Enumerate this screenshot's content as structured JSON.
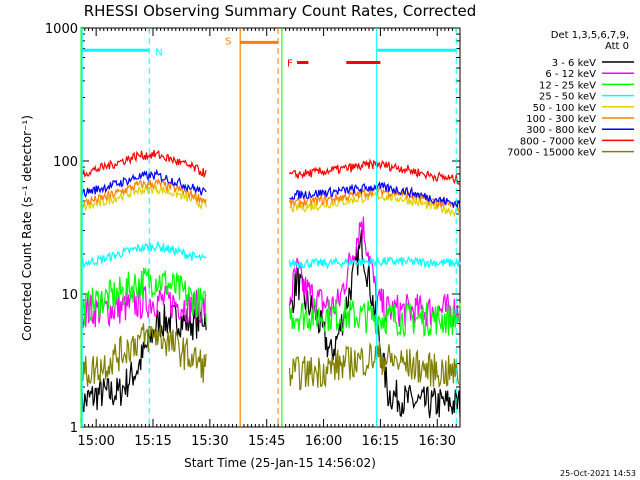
{
  "chart_data": {
    "type": "line",
    "title": "RHESSI Observing Summary Count Rates, Corrected",
    "xlabel": "Start Time (25-Jan-15 14:56:02)",
    "ylabel": "Corrected Count Rate (s⁻¹ detector⁻¹)",
    "y_scale": "log",
    "ylim": [
      1,
      1000
    ],
    "xlim_minutes": [
      0,
      100
    ],
    "x_ticks": [
      {
        "label": "15:00",
        "minute": 4
      },
      {
        "label": "15:15",
        "minute": 19
      },
      {
        "label": "15:30",
        "minute": 34
      },
      {
        "label": "15:45",
        "minute": 49
      },
      {
        "label": "16:00",
        "minute": 64
      },
      {
        "label": "16:15",
        "minute": 79
      },
      {
        "label": "16:30",
        "minute": 94
      }
    ],
    "y_ticks": [
      {
        "label": "1",
        "value": 1
      },
      {
        "label": "10",
        "value": 10
      },
      {
        "label": "100",
        "value": 100
      },
      {
        "label": "1000",
        "value": 1000
      }
    ],
    "legend_header": [
      "Det 1,3,5,6,7,9,",
      "Att 0"
    ],
    "legend_position": "top-right",
    "series": [
      {
        "name": "3 - 6 keV",
        "color": "#000000",
        "segments": [
          {
            "x": [
              0,
              5,
              10,
              15,
              20,
              25,
              30,
              33
            ],
            "y": [
              1.5,
              1.8,
              1.8,
              2.8,
              6,
              6.5,
              6,
              7
            ]
          },
          {
            "x": [
              55,
              57,
              59,
              62,
              66,
              68,
              72,
              74,
              76,
              78,
              81,
              85,
              90,
              100
            ],
            "y": [
              7,
              13,
              9,
              7,
              3.5,
              5,
              14,
              24,
              13,
              6,
              1.8,
              1.6,
              1.5,
              1.5
            ]
          }
        ]
      },
      {
        "name": "6 - 12 keV",
        "color": "#ff00ff",
        "segments": [
          {
            "x": [
              0,
              5,
              10,
              15,
              20,
              25,
              30,
              33
            ],
            "y": [
              7.5,
              7.5,
              7.8,
              8.5,
              9,
              8.5,
              8,
              8
            ]
          },
          {
            "x": [
              55,
              57,
              59,
              62,
              66,
              68,
              72,
              74,
              76,
              78,
              81,
              85,
              90,
              100
            ],
            "y": [
              9,
              15,
              11,
              9,
              8,
              8.5,
              22,
              36,
              20,
              9,
              7.5,
              7.5,
              7.5,
              7.5
            ]
          }
        ]
      },
      {
        "name": "12 - 25 keV",
        "color": "#00ff00",
        "segments": [
          {
            "x": [
              0,
              5,
              10,
              15,
              20,
              25,
              30,
              33
            ],
            "y": [
              7.5,
              9,
              10,
              12,
              13,
              11,
              9,
              8
            ]
          },
          {
            "x": [
              55,
              65,
              75,
              85,
              100
            ],
            "y": [
              7,
              7,
              6.8,
              6.5,
              6.5
            ]
          }
        ]
      },
      {
        "name": "25 - 50 keV",
        "color": "#00ffff",
        "segments": [
          {
            "x": [
              0,
              5,
              10,
              15,
              20,
              25,
              30,
              33
            ],
            "y": [
              17,
              18,
              20,
              22,
              23,
              21,
              19,
              18
            ]
          },
          {
            "x": [
              55,
              65,
              75,
              85,
              100
            ],
            "y": [
              17,
              17,
              17.5,
              17.5,
              17
            ]
          }
        ]
      },
      {
        "name": "50 - 100 keV",
        "color": "#e0d000",
        "segments": [
          {
            "x": [
              0,
              5,
              10,
              15,
              20,
              25,
              30,
              33
            ],
            "y": [
              44,
              48,
              54,
              60,
              62,
              57,
              50,
              46
            ]
          },
          {
            "x": [
              55,
              62,
              70,
              78,
              85,
              92,
              100
            ],
            "y": [
              44,
              46,
              50,
              55,
              52,
              46,
              41
            ]
          }
        ]
      },
      {
        "name": "100 - 300 keV",
        "color": "#ff8000",
        "segments": [
          {
            "x": [
              0,
              5,
              10,
              15,
              20,
              25,
              30,
              33
            ],
            "y": [
              48,
              52,
              58,
              66,
              68,
              62,
              55,
              50
            ]
          },
          {
            "x": [
              55,
              62,
              70,
              78,
              85,
              92,
              100
            ],
            "y": [
              48,
              50,
              54,
              60,
              57,
              50,
              45
            ]
          }
        ]
      },
      {
        "name": "300 - 800 keV",
        "color": "#0000ff",
        "segments": [
          {
            "x": [
              0,
              5,
              10,
              15,
              20,
              25,
              30,
              33
            ],
            "y": [
              57,
              62,
              68,
              76,
              78,
              70,
              62,
              57
            ]
          },
          {
            "x": [
              55,
              62,
              70,
              78,
              85,
              92,
              100
            ],
            "y": [
              55,
              57,
              60,
              64,
              60,
              53,
              47
            ]
          }
        ]
      },
      {
        "name": "800 - 7000 keV",
        "color": "#ff0000",
        "segments": [
          {
            "x": [
              0,
              5,
              10,
              15,
              20,
              25,
              30,
              33
            ],
            "y": [
              80,
              88,
              98,
              110,
              112,
              100,
              88,
              80
            ]
          },
          {
            "x": [
              55,
              62,
              70,
              78,
              85,
              92,
              100
            ],
            "y": [
              78,
              82,
              88,
              95,
              88,
              78,
              72
            ]
          }
        ]
      },
      {
        "name": "7000 - 15000 keV",
        "color": "#808000",
        "segments": [
          {
            "x": [
              0,
              5,
              10,
              15,
              20,
              25,
              30,
              33
            ],
            "y": [
              2.5,
              2.8,
              3.5,
              4.5,
              5,
              4,
              3.2,
              2.8
            ]
          },
          {
            "x": [
              55,
              62,
              70,
              78,
              85,
              92,
              100
            ],
            "y": [
              2.5,
              2.6,
              3,
              3.4,
              3,
              2.7,
              2.5
            ]
          }
        ]
      }
    ],
    "annotations": [
      {
        "label": "N",
        "color": "#00ffff",
        "bar_x": [
          0,
          18
        ],
        "level": 680,
        "boundaries": [
          18,
          78,
          99
        ]
      },
      {
        "label": "S",
        "color": "#ff8000",
        "bar_x": [
          42,
          52
        ],
        "level": 780,
        "boundaries": [
          42,
          52
        ]
      },
      {
        "label": "F",
        "color": "#ff0000",
        "bars": [
          [
            57,
            60
          ],
          [
            70,
            79
          ]
        ],
        "level": 550
      }
    ],
    "green_markers": [
      0,
      53
    ]
  },
  "footer": {
    "timestamp": "25-Oct-2021 14:53"
  }
}
